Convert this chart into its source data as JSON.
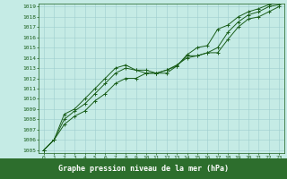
{
  "title": "Graphe pression niveau de la mer (hPa)",
  "bg_color": "#c5ebe5",
  "plot_bg_color": "#c5ebe5",
  "bottom_bar_color": "#2d6e2d",
  "line_color": "#1a5e1a",
  "grid_color": "#9ecece",
  "x_ticks": [
    0,
    1,
    2,
    3,
    4,
    5,
    6,
    7,
    8,
    9,
    10,
    11,
    12,
    13,
    14,
    15,
    16,
    17,
    18,
    19,
    20,
    21,
    22,
    23
  ],
  "y_min": 1005,
  "y_max": 1019,
  "y_ticks": [
    1005,
    1006,
    1007,
    1008,
    1009,
    1010,
    1011,
    1012,
    1013,
    1014,
    1015,
    1016,
    1017,
    1018,
    1019
  ],
  "series": [
    [
      1005.0,
      1006.0,
      1007.5,
      1008.3,
      1008.8,
      1009.8,
      1010.5,
      1011.5,
      1012.0,
      1012.0,
      1012.5,
      1012.5,
      1012.8,
      1013.3,
      1014.0,
      1014.2,
      1014.5,
      1014.5,
      1015.8,
      1017.0,
      1017.8,
      1018.0,
      1018.5,
      1019.0
    ],
    [
      1005.0,
      1006.0,
      1008.0,
      1008.8,
      1009.5,
      1010.5,
      1011.5,
      1012.5,
      1013.0,
      1012.8,
      1012.8,
      1012.5,
      1012.8,
      1013.2,
      1014.2,
      1014.2,
      1014.5,
      1015.0,
      1016.5,
      1017.5,
      1018.2,
      1018.5,
      1019.0,
      1019.2
    ],
    [
      1005.0,
      1006.0,
      1008.5,
      1009.0,
      1010.0,
      1011.0,
      1012.0,
      1013.0,
      1013.3,
      1012.8,
      1012.5,
      1012.5,
      1012.5,
      1013.2,
      1014.3,
      1015.0,
      1015.2,
      1016.8,
      1017.2,
      1018.0,
      1018.5,
      1018.8,
      1019.2,
      1019.4
    ]
  ],
  "tick_fontsize": 5,
  "label_fontsize": 6,
  "tick_color": "#1a5e1a",
  "label_color": "#ffffff"
}
